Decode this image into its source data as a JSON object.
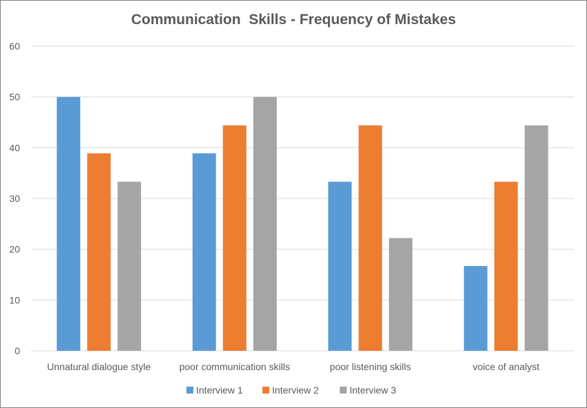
{
  "chart_data": {
    "type": "bar",
    "title": "Communication  Skills - Frequency of Mistakes",
    "categories": [
      "Unnatural dialogue style",
      "poor communication skills",
      "poor listening skills",
      "voice of analyst"
    ],
    "series": [
      {
        "name": "Interview 1",
        "color": "#5b9bd5",
        "values": [
          50,
          38.9,
          33.3,
          16.7
        ]
      },
      {
        "name": "Interview 2",
        "color": "#ed7d31",
        "values": [
          38.9,
          44.4,
          44.4,
          33.3
        ]
      },
      {
        "name": "Interview 3",
        "color": "#a5a5a5",
        "values": [
          33.3,
          50,
          22.2,
          44.4
        ]
      }
    ],
    "ylim": [
      0,
      60
    ],
    "yticks": [
      0,
      10,
      20,
      30,
      40,
      50,
      60
    ],
    "grid": true,
    "legend": "bottom"
  }
}
